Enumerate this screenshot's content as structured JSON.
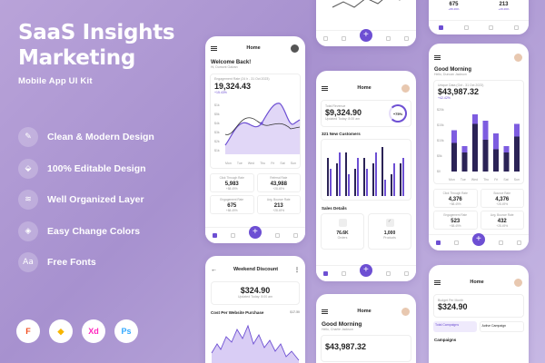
{
  "hero": {
    "title_line1": "SaaS Insights",
    "title_line2": "Marketing",
    "subtitle": "Mobile App UI Kit"
  },
  "features": [
    {
      "label": "Clean & Modern Design",
      "icon": "brush-icon"
    },
    {
      "label": "100% Editable Design",
      "icon": "tag-icon"
    },
    {
      "label": "Well Organized Layer",
      "icon": "layers-icon"
    },
    {
      "label": "Easy Change Colors",
      "icon": "palette-icon"
    },
    {
      "label": "Free Fonts",
      "icon": "font-icon",
      "glyph": "Aa"
    }
  ],
  "tools": [
    {
      "name": "figma-icon",
      "glyph": "F",
      "color": "#f24e1e"
    },
    {
      "name": "sketch-icon",
      "glyph": "◆",
      "color": "#f7b500"
    },
    {
      "name": "xd-icon",
      "glyph": "Xd",
      "color": "#ff26be"
    },
    {
      "name": "photoshop-icon",
      "glyph": "Ps",
      "color": "#31a8ff"
    }
  ],
  "colors": {
    "accent": "#6d4fd3",
    "accent_light": "#b39cf0",
    "dark_bar": "#2b2356"
  },
  "phone_home": {
    "title": "Home",
    "greeting": "Welcome Back!",
    "greeting_sub": "Hi, Dumont Galvan",
    "engagement_label": "Engagement Rate (24 h - 31 Oct 2023)",
    "engagement_value": "19,324.43",
    "engagement_delta": "+15.43%",
    "x_labels": [
      "Mon",
      "Tue",
      "Wed",
      "Thu",
      "Fri",
      "Sat",
      "Sun"
    ],
    "y_labels": [
      "$1k",
      "$5k",
      "$4k",
      "$3k",
      "$2k",
      "$1k"
    ],
    "stats": [
      {
        "label": "Click Through Rate",
        "value": "5,983",
        "delta": "+88.49%"
      },
      {
        "label": "Referral Rate",
        "value": "43,988",
        "delta": "+28.49%"
      },
      {
        "label": "Engagement Rate",
        "value": "675",
        "delta": "+88.49%"
      },
      {
        "label": "Avg. Bounce Rate",
        "value": "213",
        "delta": "+28.49%"
      }
    ]
  },
  "phone_top_right": {
    "stats": [
      {
        "value": "675",
        "delta": "+88.49%"
      },
      {
        "value": "213",
        "delta": "+28.49%"
      }
    ]
  },
  "phone_center": {
    "title": "Home",
    "revenue_label": "Total Revenue",
    "revenue_value": "$9,324.90",
    "revenue_sub": "Updated Today: 8:00 am",
    "progress_label": "+75%",
    "progress_value": 0.75,
    "customers_title": "321 New Customers",
    "bars_dark": [
      7,
      6,
      8,
      5,
      7,
      6,
      9,
      4,
      6
    ],
    "bars_light": [
      5,
      8,
      4,
      7,
      5,
      8,
      3,
      6,
      7
    ],
    "sales_title": "Sales Details",
    "sales": [
      {
        "value": "76.6K",
        "label": "Orders"
      },
      {
        "value": "1,000",
        "label": "Products"
      }
    ]
  },
  "phone_right": {
    "greeting": "Good Morning",
    "greeting_sub": "Hello, Duncan Jackson",
    "metric_label": "Unique Data (Oct - 31 Oct 2023)",
    "metric_value": "$43,987.32",
    "metric_delta": "+42.42%",
    "y_labels": [
      "$20k",
      "$15k",
      "$10k",
      "$5k",
      "$0"
    ],
    "x_labels": [
      "Mon",
      "Tue",
      "Wed",
      "Thu",
      "Fri",
      "Sat",
      "Sun"
    ],
    "bars": [
      {
        "dark": 0.45,
        "light": 0.2
      },
      {
        "dark": 0.3,
        "light": 0.1
      },
      {
        "dark": 0.75,
        "light": 0.15
      },
      {
        "dark": 0.5,
        "light": 0.3
      },
      {
        "dark": 0.35,
        "light": 0.25
      },
      {
        "dark": 0.3,
        "light": 0.1
      },
      {
        "dark": 0.55,
        "light": 0.2
      }
    ],
    "stats": [
      {
        "label": "Click Through Rate",
        "value": "4,376",
        "delta": "+88.49%"
      },
      {
        "label": "Bounce Rate",
        "value": "4,376",
        "delta": "+28.49%"
      },
      {
        "label": "Engagement Rate",
        "value": "523",
        "delta": "+88.49%"
      },
      {
        "label": "Avg. Bounce Rate",
        "value": "432",
        "delta": "+28.49%"
      }
    ]
  },
  "phone_weekend": {
    "title": "Weekend Discount",
    "value": "$324.90",
    "value_sub": "Updated Today: 8:00 am",
    "cost_label": "Cost Per Website Purchase",
    "cost_value": "$17.50"
  },
  "phone_bottom_center": {
    "title": "Home",
    "greeting": "Good Morning",
    "greeting_sub": "Hello, Charlie Jackson",
    "value": "$43,987.32"
  },
  "phone_bottom_right": {
    "title": "Home",
    "budget_label": "Budget Per Month",
    "value": "$324.90",
    "tab_total": "Total Campaigns",
    "tab_active": "Active Campaign",
    "campaigns_title": "Campaigns"
  }
}
